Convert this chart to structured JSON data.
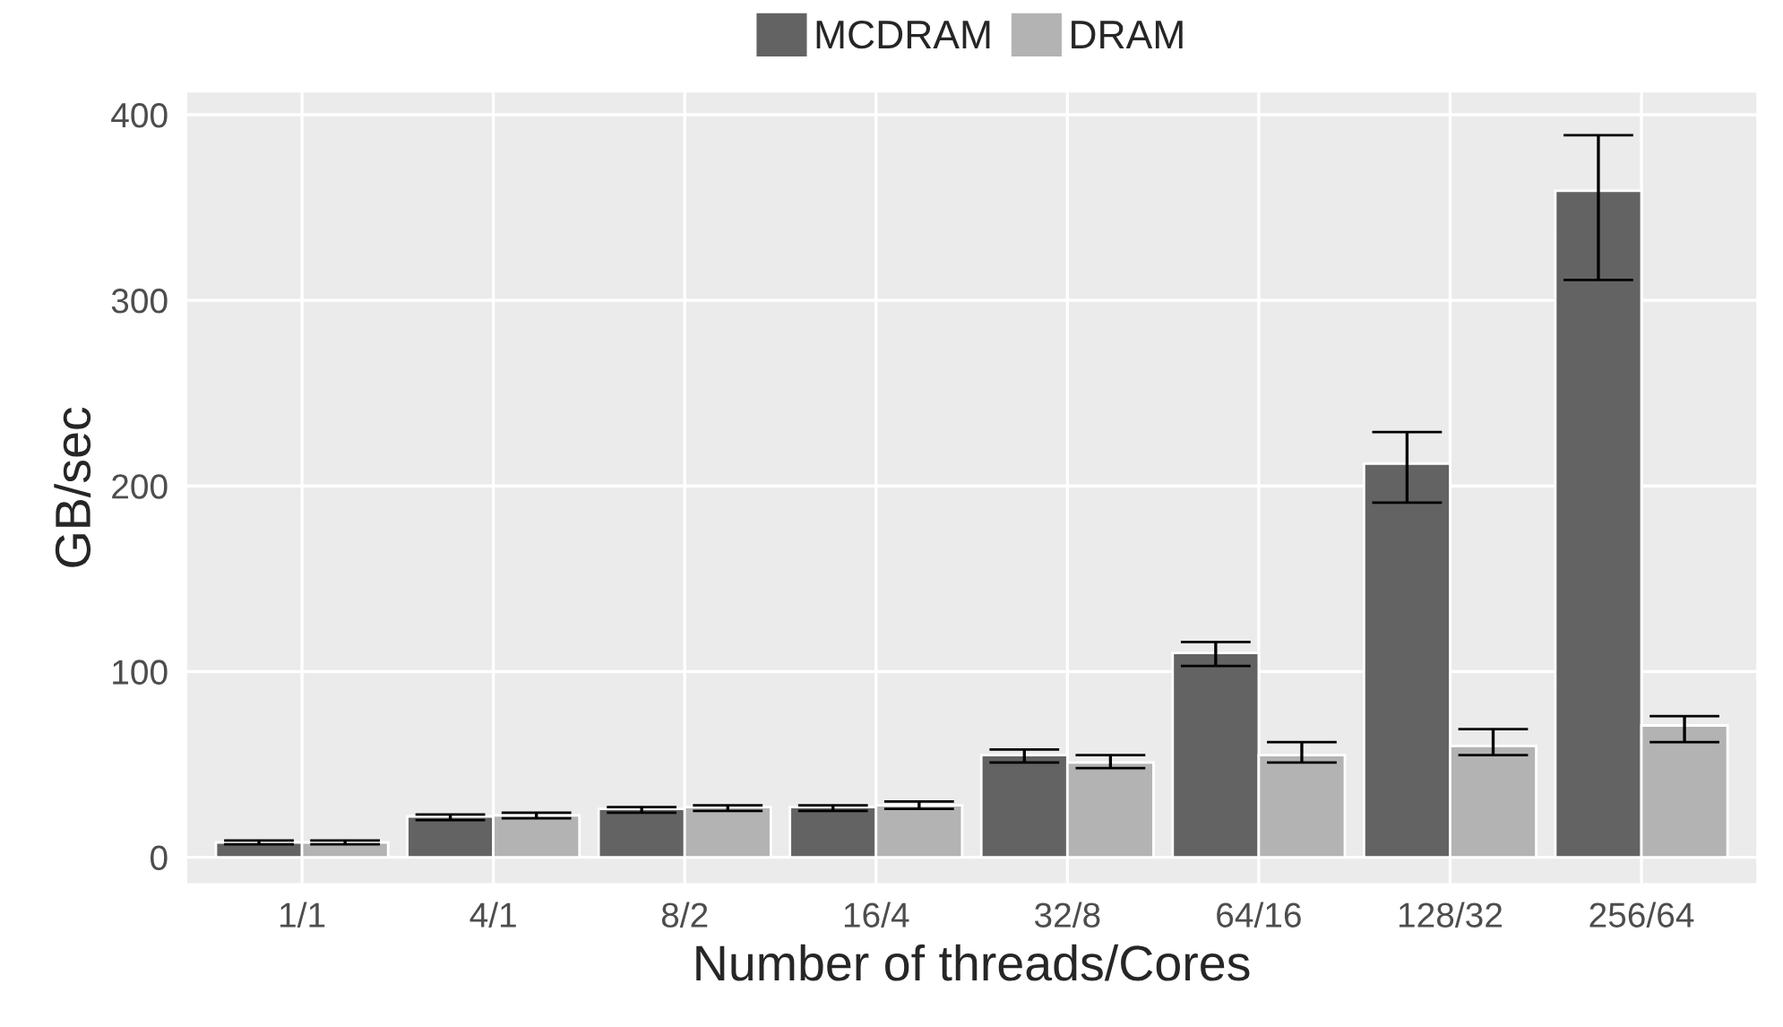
{
  "chart_data": {
    "type": "bar",
    "xlabel": "Number of threads/Cores",
    "ylabel": "GB/sec",
    "categories": [
      "1/1",
      "4/1",
      "8/2",
      "16/4",
      "32/8",
      "64/16",
      "128/32",
      "256/64"
    ],
    "series": [
      {
        "name": "MCDRAM",
        "color": "#636363",
        "values": [
          8,
          22,
          26,
          27,
          55,
          110,
          212,
          359
        ],
        "errors": [
          [
            7,
            9
          ],
          [
            20,
            23
          ],
          [
            24,
            27
          ],
          [
            25,
            28
          ],
          [
            51,
            58
          ],
          [
            103,
            116
          ],
          [
            191,
            229
          ],
          [
            311,
            389
          ]
        ]
      },
      {
        "name": "DRAM",
        "color": "#b3b3b3",
        "values": [
          8,
          22.5,
          27,
          28,
          51,
          55,
          60,
          71
        ],
        "errors": [
          [
            7,
            9
          ],
          [
            21,
            24
          ],
          [
            25,
            28
          ],
          [
            26,
            30
          ],
          [
            48,
            55
          ],
          [
            51,
            62
          ],
          [
            55,
            69
          ],
          [
            62,
            76
          ]
        ]
      }
    ],
    "ylim": [
      -14,
      412
    ],
    "yticks": [
      0,
      100,
      200,
      300,
      400
    ],
    "grid": true,
    "legend": "top"
  }
}
